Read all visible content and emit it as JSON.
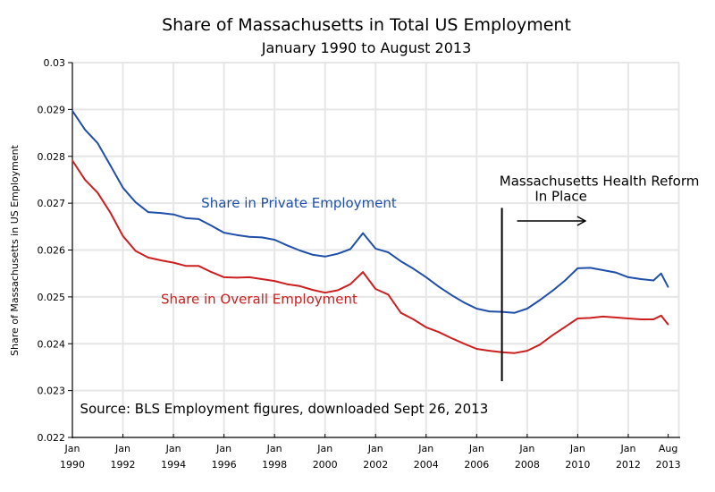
{
  "chart_data": {
    "type": "line",
    "title": "Share of Massachusetts in Total US Employment",
    "subtitle": "January 1990 to August 2013",
    "xlabel": "",
    "ylabel": "Share of Massachusetts in US Employment",
    "xlim": [
      1990.0,
      2014.0
    ],
    "ylim": [
      0.022,
      0.03
    ],
    "grid": true,
    "yticks": [
      "0.022",
      "0.023",
      "0.024",
      "0.025",
      "0.026",
      "0.027",
      "0.028",
      "0.029",
      "0.03"
    ],
    "xticks": [
      {
        "at": 1990.0,
        "top": "Jan",
        "bottom": "1990"
      },
      {
        "at": 1992.0,
        "top": "Jan",
        "bottom": "1992"
      },
      {
        "at": 1994.0,
        "top": "Jan",
        "bottom": "1994"
      },
      {
        "at": 1996.0,
        "top": "Jan",
        "bottom": "1996"
      },
      {
        "at": 1998.0,
        "top": "Jan",
        "bottom": "1998"
      },
      {
        "at": 2000.0,
        "top": "Jan",
        "bottom": "2000"
      },
      {
        "at": 2002.0,
        "top": "Jan",
        "bottom": "2002"
      },
      {
        "at": 2004.0,
        "top": "Jan",
        "bottom": "2004"
      },
      {
        "at": 2006.0,
        "top": "Jan",
        "bottom": "2006"
      },
      {
        "at": 2008.0,
        "top": "Jan",
        "bottom": "2008"
      },
      {
        "at": 2010.0,
        "top": "Jan",
        "bottom": "2010"
      },
      {
        "at": 2012.0,
        "top": "Jan",
        "bottom": "2012"
      },
      {
        "at": 2013.58,
        "top": "Aug",
        "bottom": "2013"
      }
    ],
    "x": [
      1990.0,
      1990.5,
      1991.0,
      1991.5,
      1992.0,
      1992.5,
      1993.0,
      1993.5,
      1994.0,
      1994.5,
      1995.0,
      1995.5,
      1996.0,
      1996.5,
      1997.0,
      1997.5,
      1998.0,
      1998.5,
      1999.0,
      1999.5,
      2000.0,
      2000.5,
      2001.0,
      2001.5,
      2002.0,
      2002.5,
      2003.0,
      2003.5,
      2004.0,
      2004.5,
      2005.0,
      2005.5,
      2006.0,
      2006.5,
      2007.0,
      2007.5,
      2008.0,
      2008.5,
      2009.0,
      2009.5,
      2010.0,
      2010.5,
      2011.0,
      2011.5,
      2012.0,
      2012.5,
      2013.0,
      2013.3,
      2013.58
    ],
    "series": [
      {
        "name": "Share in Private Employment",
        "color": "#1f4fa8",
        "values": [
          0.02897,
          0.02857,
          0.02828,
          0.02781,
          0.02733,
          0.02702,
          0.02681,
          0.02679,
          0.02676,
          0.02668,
          0.02666,
          0.02652,
          0.02637,
          0.02632,
          0.02628,
          0.02627,
          0.02622,
          0.0261,
          0.02599,
          0.0259,
          0.02586,
          0.02592,
          0.02602,
          0.02636,
          0.02603,
          0.02595,
          0.02576,
          0.0256,
          0.02542,
          0.02522,
          0.02504,
          0.02488,
          0.02475,
          0.02469,
          0.02468,
          0.02466,
          0.02475,
          0.02493,
          0.02513,
          0.02535,
          0.02561,
          0.02562,
          0.02557,
          0.02552,
          0.02542,
          0.02538,
          0.02535,
          0.0255,
          0.02521
        ]
      },
      {
        "name": "Share in Overall Employment",
        "color": "#cc2020",
        "values": [
          0.02791,
          0.0275,
          0.02722,
          0.0268,
          0.0263,
          0.02598,
          0.02584,
          0.02578,
          0.02573,
          0.02566,
          0.02566,
          0.02553,
          0.02542,
          0.02541,
          0.02542,
          0.02538,
          0.02534,
          0.02527,
          0.02523,
          0.02515,
          0.02509,
          0.02514,
          0.02527,
          0.02553,
          0.02517,
          0.02505,
          0.02466,
          0.02452,
          0.02435,
          0.02425,
          0.02412,
          0.024,
          0.02389,
          0.02385,
          0.02382,
          0.0238,
          0.02385,
          0.02398,
          0.02418,
          0.02436,
          0.02454,
          0.02455,
          0.02458,
          0.02456,
          0.02454,
          0.02452,
          0.02452,
          0.0246,
          0.02441
        ]
      }
    ],
    "annotations": [
      {
        "text": "Share in Private Employment",
        "color": "#1f4fa8",
        "x": 1995.1,
        "y": 0.02691
      },
      {
        "text": "Share in Overall Employment",
        "color": "#cc2020",
        "x": 1993.5,
        "y": 0.02485
      },
      {
        "text": "Massachusetts Health Reform",
        "color": "#000000",
        "x": 2006.9,
        "y": 0.02737
      },
      {
        "text": "In Place",
        "color": "#000000",
        "x": 2008.3,
        "y": 0.02705
      },
      {
        "text": "Source:  BLS Employment figures, downloaded Sept 26, 2013",
        "color": "#000000",
        "x": 1990.3,
        "y": 0.02252
      }
    ],
    "vline": {
      "x": 2007.0,
      "y_from": 0.0232,
      "y_to": 0.0269
    },
    "arrow": {
      "x_from": 2007.6,
      "x_to": 2010.3,
      "y": 0.02662
    }
  }
}
